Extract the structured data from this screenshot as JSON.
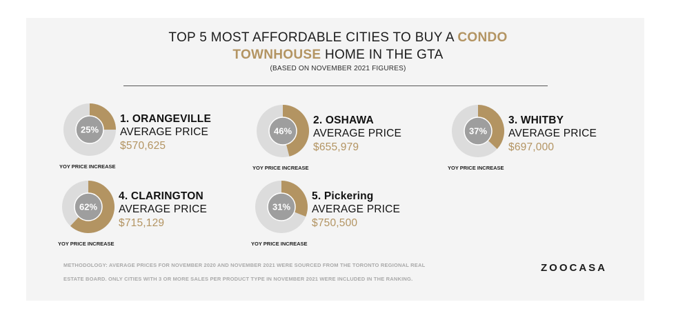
{
  "title": {
    "line1_prefix": "TOP 5 MOST AFFORDABLE CITIES TO BUY A ",
    "line1_highlight": "CONDO",
    "line2_highlight": "TOWNHOUSE",
    "line2_suffix": " HOME IN THE GTA"
  },
  "subtitle": "(BASED ON NOVEMBER 2021 FIGURES)",
  "chart_data": {
    "type": "pie",
    "series_label": "YOY PRICE INCREASE",
    "categories": [
      "ORANGEVILLE",
      "OSHAWA",
      "WHITBY",
      "CLARINGTON",
      "PICKERING"
    ],
    "values": [
      25,
      46,
      37,
      62,
      31
    ],
    "items": [
      {
        "rank_label": "1. ORANGEVILLE",
        "price_label": "AVERAGE PRICE",
        "price": "$570,625",
        "yoy_pct": 25,
        "yoy_text": "25%"
      },
      {
        "rank_label": "2. OSHAWA",
        "price_label": "AVERAGE PRICE",
        "price": "$655,979",
        "yoy_pct": 46,
        "yoy_text": "46%"
      },
      {
        "rank_label": "3. WHITBY",
        "price_label": "AVERAGE PRICE",
        "price": "$697,000",
        "yoy_pct": 37,
        "yoy_text": "37%"
      },
      {
        "rank_label": "4. CLARINGTON",
        "price_label": "AVERAGE PRICE",
        "price": "$715,129",
        "yoy_pct": 62,
        "yoy_text": "62%"
      },
      {
        "rank_label": "5. Pickering",
        "price_label": "AVERAGE PRICE",
        "price": "$750,500",
        "yoy_pct": 31,
        "yoy_text": "31%"
      }
    ],
    "colors": {
      "filled": "#b39462",
      "ring": "#dcdcdc",
      "center": "#9e9e9e",
      "center_text": "#ffffff"
    }
  },
  "methodology": {
    "line1": "METHODOLOGY: AVERAGE PRICES FOR NOVEMBER 2020 AND NOVEMBER 2021 WERE SOURCED FROM THE TORONTO REGIONAL REAL",
    "line2": "ESTATE BOARD. ONLY CITIES WITH 3 OR MORE SALES PER PRODUCT TYPE IN NOVEMBER 2021 WERE INCLUDED IN THE RANKING."
  },
  "logo": "ZOOCASA"
}
